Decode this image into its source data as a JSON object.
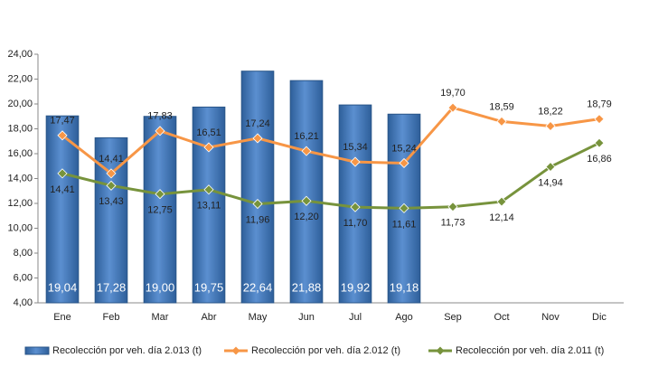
{
  "chart_data": {
    "type": "bar",
    "categories": [
      "Ene",
      "Feb",
      "Mar",
      "Abr",
      "May",
      "Jun",
      "Jul",
      "Ago",
      "Sep",
      "Oct",
      "Nov",
      "Dic"
    ],
    "ylim": [
      4,
      24
    ],
    "yticks": [
      {
        "value": 4,
        "label": "4,00"
      },
      {
        "value": 6,
        "label": "6,00"
      },
      {
        "value": 8,
        "label": "8,00"
      },
      {
        "value": 10,
        "label": "10,00"
      },
      {
        "value": 12,
        "label": "12,00"
      },
      {
        "value": 14,
        "label": "14,00"
      },
      {
        "value": 16,
        "label": "16,00"
      },
      {
        "value": 18,
        "label": "18,00"
      },
      {
        "value": 20,
        "label": "20,00"
      },
      {
        "value": 22,
        "label": "22,00"
      },
      {
        "value": 24,
        "label": "24,00"
      }
    ],
    "grid": false,
    "series": [
      {
        "name": "Recolección por veh. día 2.013 (t)",
        "type": "bar",
        "color": "#4f81bd",
        "values": [
          19.04,
          17.28,
          19.0,
          19.75,
          22.64,
          21.88,
          19.92,
          19.18,
          null,
          null,
          null,
          null
        ],
        "value_labels": [
          "19,04",
          "17,28",
          "19,00",
          "19,75",
          "22,64",
          "21,88",
          "19,92",
          "19,18",
          null,
          null,
          null,
          null
        ]
      },
      {
        "name": "Recolección por veh. día 2.012 (t)",
        "type": "line",
        "color": "#f79646",
        "values": [
          17.47,
          14.41,
          17.83,
          16.51,
          17.24,
          16.21,
          15.34,
          15.24,
          19.7,
          18.59,
          18.22,
          18.79
        ],
        "value_labels": [
          "17,47",
          "14,41",
          "17,83",
          "16,51",
          "17,24",
          "16,21",
          "15,34",
          "15,24",
          "19,70",
          "18,59",
          "18,22",
          "18,79"
        ]
      },
      {
        "name": "Recolección por veh. día 2.011 (t)",
        "type": "line",
        "color": "#77933c",
        "values": [
          14.41,
          13.43,
          12.75,
          13.11,
          11.96,
          12.2,
          11.7,
          11.61,
          11.73,
          12.14,
          14.94,
          16.86
        ],
        "value_labels": [
          "14,41",
          "13,43",
          "12,75",
          "13,11",
          "11,96",
          "12,20",
          "11,70",
          "11,61",
          "11,73",
          "12,14",
          "14,94",
          "16,86"
        ]
      }
    ]
  }
}
